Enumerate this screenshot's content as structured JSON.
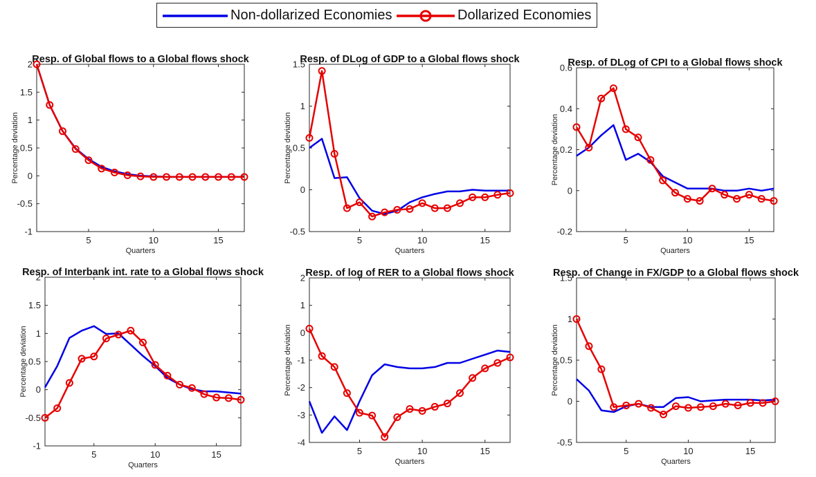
{
  "legend": {
    "items": [
      {
        "label": "Non-dollarized Economies",
        "color": "#0000e6",
        "marker": "none"
      },
      {
        "label": "Dollarized Economies",
        "color": "#e60000",
        "marker": "circle"
      }
    ]
  },
  "chart_data": [
    {
      "type": "line",
      "title": "Resp. of Global flows to a Global flows shock",
      "xlabel": "Quarters",
      "ylabel": "Percentage deviation",
      "xlim": [
        1,
        17
      ],
      "ylim": [
        -1,
        2
      ],
      "xticks": [
        5,
        10,
        15
      ],
      "yticks": [
        -1,
        -0.5,
        0,
        0.5,
        1,
        1.5,
        2
      ],
      "x": [
        1,
        2,
        3,
        4,
        5,
        6,
        7,
        8,
        9,
        10,
        11,
        12,
        13,
        14,
        15,
        16,
        17
      ],
      "series": [
        {
          "name": "Non-dollarized Economies",
          "color": "#0000e6",
          "marker": "none",
          "values": [
            2.0,
            1.27,
            0.8,
            0.49,
            0.3,
            0.16,
            0.08,
            0.03,
            0.0,
            -0.01,
            -0.02,
            -0.02,
            -0.02,
            -0.02,
            -0.02,
            -0.02,
            -0.02
          ]
        },
        {
          "name": "Dollarized Economies",
          "color": "#e60000",
          "marker": "circle",
          "values": [
            2.0,
            1.27,
            0.8,
            0.48,
            0.28,
            0.13,
            0.06,
            0.01,
            -0.01,
            -0.02,
            -0.02,
            -0.02,
            -0.02,
            -0.02,
            -0.02,
            -0.02,
            -0.02
          ]
        }
      ]
    },
    {
      "type": "line",
      "title": "Resp. of DLog of GDP to a Global flows shock",
      "xlabel": "Quarters",
      "ylabel": "Percentage deviation",
      "xlim": [
        1,
        17
      ],
      "ylim": [
        -0.5,
        1.5
      ],
      "xticks": [
        5,
        10,
        15
      ],
      "yticks": [
        -0.5,
        0,
        0.5,
        1,
        1.5
      ],
      "x": [
        1,
        2,
        3,
        4,
        5,
        6,
        7,
        8,
        9,
        10,
        11,
        12,
        13,
        14,
        15,
        16,
        17
      ],
      "series": [
        {
          "name": "Non-dollarized Economies",
          "color": "#0000e6",
          "marker": "none",
          "values": [
            0.5,
            0.61,
            0.14,
            0.15,
            -0.1,
            -0.25,
            -0.29,
            -0.25,
            -0.15,
            -0.09,
            -0.05,
            -0.02,
            -0.02,
            0.0,
            -0.01,
            -0.01,
            -0.01
          ]
        },
        {
          "name": "Dollarized Economies",
          "color": "#e60000",
          "marker": "circle",
          "values": [
            0.62,
            1.42,
            0.43,
            -0.22,
            -0.15,
            -0.32,
            -0.27,
            -0.24,
            -0.23,
            -0.16,
            -0.22,
            -0.22,
            -0.16,
            -0.09,
            -0.09,
            -0.06,
            -0.04
          ]
        }
      ]
    },
    {
      "type": "line",
      "title": "Resp. of DLog of CPI to a Global flows shock",
      "xlabel": "Quarters",
      "ylabel": "Percentage deviation",
      "xlim": [
        1,
        17
      ],
      "ylim": [
        -0.2,
        0.6
      ],
      "xticks": [
        5,
        10,
        15
      ],
      "yticks": [
        -0.2,
        0,
        0.2,
        0.4,
        0.6
      ],
      "x": [
        1,
        2,
        3,
        4,
        5,
        6,
        7,
        8,
        9,
        10,
        11,
        12,
        13,
        14,
        15,
        16,
        17
      ],
      "series": [
        {
          "name": "Non-dollarized Economies",
          "color": "#0000e6",
          "marker": "none",
          "values": [
            0.17,
            0.21,
            0.27,
            0.32,
            0.15,
            0.18,
            0.14,
            0.07,
            0.04,
            0.01,
            0.01,
            0.01,
            0.0,
            0.0,
            0.01,
            0.0,
            0.01
          ]
        },
        {
          "name": "Dollarized Economies",
          "color": "#e60000",
          "marker": "circle",
          "values": [
            0.31,
            0.21,
            0.45,
            0.5,
            0.3,
            0.26,
            0.15,
            0.05,
            -0.01,
            -0.04,
            -0.05,
            0.01,
            -0.02,
            -0.04,
            -0.02,
            -0.04,
            -0.05
          ]
        }
      ]
    },
    {
      "type": "line",
      "title": "Resp. of Interbank int. rate to a Global flows shock",
      "xlabel": "Quarters",
      "ylabel": "Percentage deviation",
      "xlim": [
        1,
        17
      ],
      "ylim": [
        -1,
        2
      ],
      "xticks": [
        5,
        10,
        15
      ],
      "yticks": [
        -1,
        -0.5,
        0,
        0.5,
        1,
        1.5,
        2
      ],
      "x": [
        1,
        2,
        3,
        4,
        5,
        6,
        7,
        8,
        9,
        10,
        11,
        12,
        13,
        14,
        15,
        16,
        17
      ],
      "series": [
        {
          "name": "Non-dollarized Economies",
          "color": "#0000e6",
          "marker": "none",
          "values": [
            0.04,
            0.42,
            0.92,
            1.05,
            1.13,
            0.99,
            1.0,
            0.8,
            0.6,
            0.42,
            0.21,
            0.09,
            0.01,
            -0.03,
            -0.03,
            -0.05,
            -0.07
          ]
        },
        {
          "name": "Dollarized Economies",
          "color": "#e60000",
          "marker": "circle",
          "values": [
            -0.5,
            -0.33,
            0.12,
            0.55,
            0.59,
            0.91,
            0.98,
            1.05,
            0.84,
            0.44,
            0.25,
            0.09,
            0.03,
            -0.08,
            -0.14,
            -0.15,
            -0.18
          ]
        }
      ]
    },
    {
      "type": "line",
      "title": "Resp. of log of RER to a Global flows shock",
      "xlabel": "Quarters",
      "ylabel": "Percentage deviation",
      "xlim": [
        1,
        17
      ],
      "ylim": [
        -4,
        2
      ],
      "xticks": [
        5,
        10,
        15
      ],
      "yticks": [
        -4,
        -3,
        -2,
        -1,
        0,
        1,
        2
      ],
      "x": [
        1,
        2,
        3,
        4,
        5,
        6,
        7,
        8,
        9,
        10,
        11,
        12,
        13,
        14,
        15,
        16,
        17
      ],
      "series": [
        {
          "name": "Non-dollarized Economies",
          "color": "#0000e6",
          "marker": "none",
          "values": [
            -2.5,
            -3.65,
            -3.05,
            -3.55,
            -2.5,
            -1.55,
            -1.15,
            -1.25,
            -1.3,
            -1.3,
            -1.25,
            -1.1,
            -1.1,
            -0.95,
            -0.8,
            -0.65,
            -0.7
          ]
        },
        {
          "name": "Dollarized Economies",
          "color": "#e60000",
          "marker": "circle",
          "values": [
            0.15,
            -0.85,
            -1.25,
            -2.2,
            -2.92,
            -3.02,
            -3.8,
            -3.08,
            -2.78,
            -2.85,
            -2.7,
            -2.58,
            -2.2,
            -1.65,
            -1.3,
            -1.1,
            -0.9
          ]
        }
      ]
    },
    {
      "type": "line",
      "title": "Resp. of Change in FX/GDP to a Global flows shock",
      "xlabel": "Quarters",
      "ylabel": "Percentage deviation",
      "xlim": [
        1,
        17
      ],
      "ylim": [
        -0.5,
        1.5
      ],
      "xticks": [
        5,
        10,
        15
      ],
      "yticks": [
        -0.5,
        0,
        0.5,
        1,
        1.5
      ],
      "x": [
        1,
        2,
        3,
        4,
        5,
        6,
        7,
        8,
        9,
        10,
        11,
        12,
        13,
        14,
        15,
        16,
        17
      ],
      "series": [
        {
          "name": "Non-dollarized Economies",
          "color": "#0000e6",
          "marker": "none",
          "values": [
            0.27,
            0.13,
            -0.11,
            -0.13,
            -0.06,
            -0.03,
            -0.07,
            -0.07,
            0.04,
            0.05,
            0.0,
            0.01,
            0.02,
            0.02,
            0.02,
            0.01,
            0.02
          ]
        },
        {
          "name": "Dollarized Economies",
          "color": "#e60000",
          "marker": "circle",
          "values": [
            1.0,
            0.67,
            0.39,
            -0.07,
            -0.05,
            -0.03,
            -0.08,
            -0.16,
            -0.06,
            -0.08,
            -0.07,
            -0.06,
            -0.03,
            -0.05,
            -0.02,
            -0.02,
            0.0
          ]
        }
      ]
    }
  ]
}
